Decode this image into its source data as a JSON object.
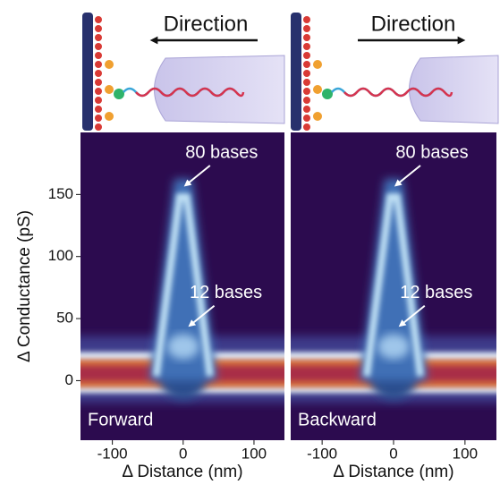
{
  "chart_data": [
    {
      "type": "heatmap",
      "direction_label": "Direction",
      "panel_label": "Forward",
      "xlabel": "Δ Distance (nm)",
      "ylabel": "Δ Conductance (pS)",
      "xlim": [
        -145,
        143
      ],
      "ylim": [
        -48,
        200
      ],
      "xticks": [
        -100,
        0,
        100
      ],
      "yticks": [
        0,
        50,
        100,
        150
      ],
      "annotations": [
        {
          "text": "80 bases",
          "x": 0,
          "y": 156
        },
        {
          "text": "12 bases",
          "x": 6,
          "y": 43
        }
      ]
    },
    {
      "type": "heatmap",
      "direction_label": "Direction",
      "panel_label": "Backward",
      "xlabel": "Δ Distance (nm)",
      "xlim": [
        -144,
        144
      ],
      "ylim": [
        -48,
        200
      ],
      "xticks": [
        -100,
        0,
        100
      ],
      "annotations": [
        {
          "text": "80 bases",
          "x": 0,
          "y": 156
        },
        {
          "text": "12 bases",
          "x": 6,
          "y": 43
        }
      ]
    }
  ]
}
